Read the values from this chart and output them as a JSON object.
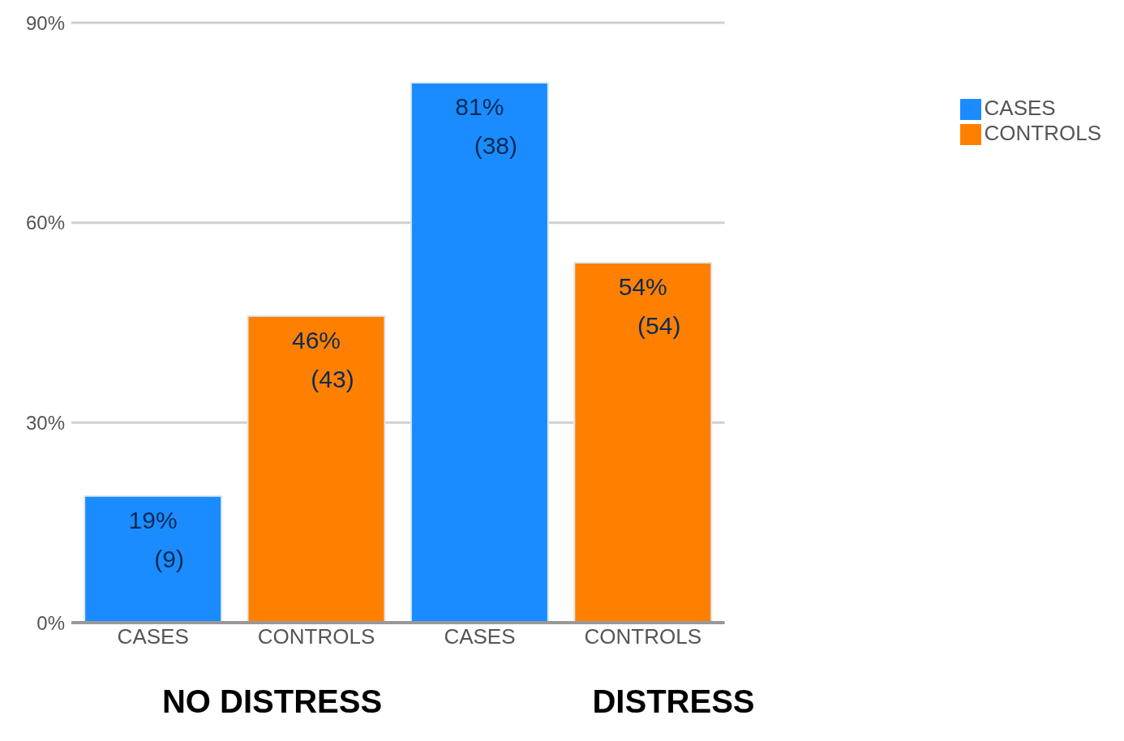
{
  "chart_data": {
    "type": "bar",
    "categories": [
      "CASES",
      "CONTROLS",
      "CASES",
      "CONTROLS"
    ],
    "series": [
      {
        "name": "CASES",
        "color": "#1a8cff",
        "values": [
          19,
          null,
          81,
          null
        ],
        "value_labels": [
          "19%\n(9)",
          null,
          "81%\n(38)",
          null
        ]
      },
      {
        "name": "CONTROLS",
        "color": "#ff8000",
        "values": [
          null,
          46,
          null,
          54
        ],
        "value_labels": [
          null,
          "46%\n(43)",
          null,
          "54%\n(54)"
        ]
      }
    ],
    "stacked": true,
    "ylim": [
      0,
      90
    ],
    "yticks": [
      {
        "value": 0,
        "label": "0%"
      },
      {
        "value": 30,
        "label": "30%"
      },
      {
        "value": 60,
        "label": "60%"
      },
      {
        "value": 90,
        "label": "90%"
      }
    ],
    "grid": "y",
    "legend": "top right",
    "annotations": [
      "NO DISTRESS",
      "DISTRESS"
    ]
  }
}
